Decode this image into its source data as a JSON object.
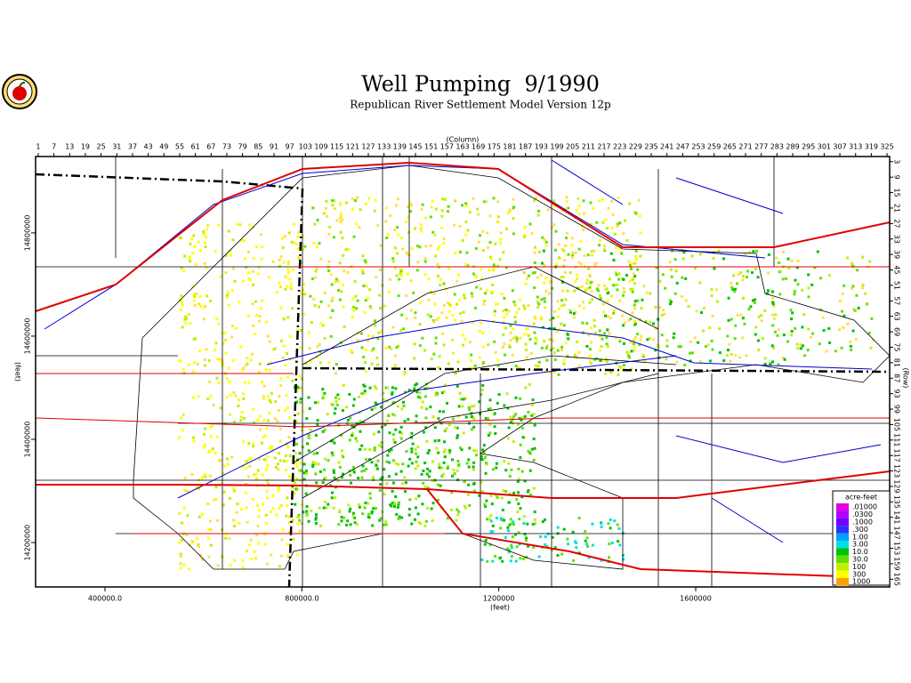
{
  "map": {
    "title": "Well Pumping  9/1990",
    "subtitle": "Republican River Settlement Model Version 12p",
    "column_label": "(Column)",
    "row_label": "(Row)",
    "x_label": "(feet)",
    "y_label": "(feet)",
    "column_lim": [
      0,
      326
    ],
    "column_ticks": [
      1,
      7,
      13,
      19,
      25,
      31,
      37,
      43,
      49,
      55,
      61,
      67,
      73,
      79,
      85,
      91,
      97,
      103,
      109,
      115,
      121,
      127,
      133,
      139,
      145,
      151,
      157,
      163,
      169,
      175,
      181,
      187,
      193,
      199,
      205,
      211,
      217,
      223,
      229,
      235,
      241,
      247,
      253,
      259,
      265,
      271,
      277,
      283,
      289,
      295,
      301,
      307,
      313,
      319,
      325
    ],
    "row_lim": [
      1,
      168
    ],
    "row_ticks": [
      3,
      9,
      15,
      21,
      27,
      33,
      39,
      45,
      51,
      57,
      63,
      69,
      75,
      81,
      87,
      93,
      99,
      105,
      111,
      117,
      123,
      129,
      135,
      141,
      147,
      153,
      159,
      165
    ],
    "xlim": [
      259000,
      1994000
    ],
    "xticks": [
      {
        "value": 400000,
        "label": "400000.0"
      },
      {
        "value": 800000,
        "label": "800000.0"
      },
      1200000,
      1600000
    ],
    "ylim": [
      14114000,
      14948000
    ],
    "yticks": [
      14800000,
      14600000,
      14400000,
      14200000
    ],
    "legend": {
      "title": "acre-feet",
      "items": [
        {
          "label": ".01000",
          "color": "#e000e0"
        },
        {
          "label": ".0300",
          "color": "#b000ff"
        },
        {
          "label": ".1000",
          "color": "#7000ff"
        },
        {
          "label": ".300",
          "color": "#3030ff"
        },
        {
          "label": "1.00",
          "color": "#00a0ff"
        },
        {
          "label": "3.00",
          "color": "#00e0e0"
        },
        {
          "label": "10.0",
          "color": "#00c000"
        },
        {
          "label": "30.0",
          "color": "#60e000"
        },
        {
          "label": "100",
          "color": "#c0f000"
        },
        {
          "label": "300",
          "color": "#ffff00"
        },
        {
          "label": "1000",
          "color": "#ffa000"
        }
      ]
    }
  }
}
